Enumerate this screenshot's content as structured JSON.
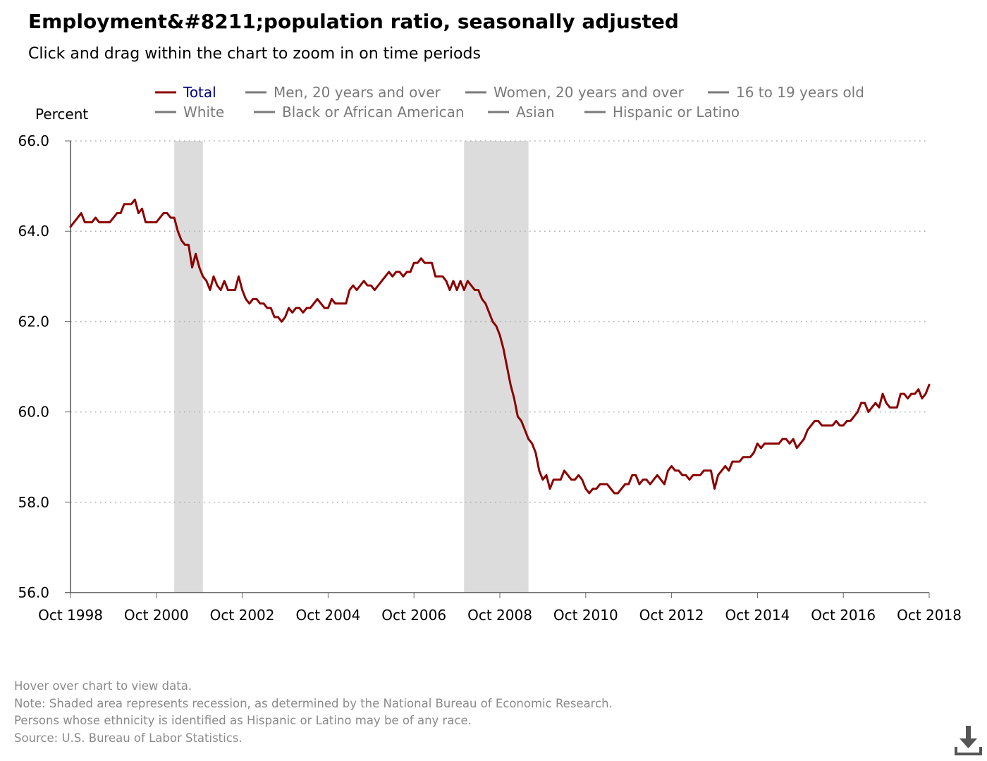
{
  "title": "Employment&#8211;population ratio, seasonally adjusted",
  "subtitle": "Click and drag within the chart to zoom in on time periods",
  "footer": {
    "lines": [
      "Hover over chart to view data.",
      "Note: Shaded area represents recession, as determined by the National Bureau of Economic Research.",
      "Persons whose ethnicity is identified as Hispanic or Latino may be of any race.",
      "Source: U.S. Bureau of Labor Statistics."
    ]
  },
  "download": {
    "icon": "download-icon"
  },
  "colors": {
    "total": "#8b0000",
    "inactive": "#7a7a7a",
    "active_label": "#00007a",
    "recession": "#dcdcdc",
    "grid": "#b0b0b0"
  },
  "chart_data": {
    "type": "line",
    "ylabel": "Percent",
    "ylim": [
      56.0,
      66.0
    ],
    "yticks": [
      "56.0",
      "58.0",
      "60.0",
      "62.0",
      "64.0",
      "66.0"
    ],
    "xlim": [
      "1998-10",
      "2018-10"
    ],
    "xticks": [
      "Oct 1998",
      "Oct 2000",
      "Oct 2002",
      "Oct 2004",
      "Oct 2006",
      "Oct 2008",
      "Oct 2010",
      "Oct 2012",
      "Oct 2014",
      "Oct 2016",
      "Oct 2018"
    ],
    "grid": true,
    "legend_position": "top",
    "legend": [
      {
        "name": "Total",
        "active": true
      },
      {
        "name": "Men, 20 years and over",
        "active": false
      },
      {
        "name": "Women, 20 years and over",
        "active": false
      },
      {
        "name": "16 to 19 years old",
        "active": false
      },
      {
        "name": "White",
        "active": false
      },
      {
        "name": "Black or African American",
        "active": false
      },
      {
        "name": "Asian",
        "active": false
      },
      {
        "name": "Hispanic or Latino",
        "active": false
      }
    ],
    "recessions": [
      {
        "start": "2001-03",
        "end": "2001-11"
      },
      {
        "start": "2007-12",
        "end": "2009-06"
      }
    ],
    "series": [
      {
        "name": "Total",
        "start": "1998-10",
        "frequency": "monthly",
        "values": [
          64.1,
          64.2,
          64.3,
          64.4,
          64.2,
          64.2,
          64.2,
          64.3,
          64.2,
          64.2,
          64.2,
          64.2,
          64.3,
          64.4,
          64.4,
          64.6,
          64.6,
          64.6,
          64.7,
          64.4,
          64.5,
          64.2,
          64.2,
          64.2,
          64.2,
          64.3,
          64.4,
          64.4,
          64.3,
          64.3,
          64.0,
          63.8,
          63.7,
          63.7,
          63.2,
          63.5,
          63.2,
          63.0,
          62.9,
          62.7,
          63.0,
          62.8,
          62.7,
          62.9,
          62.7,
          62.7,
          62.7,
          63.0,
          62.7,
          62.5,
          62.4,
          62.5,
          62.5,
          62.4,
          62.4,
          62.3,
          62.3,
          62.1,
          62.1,
          62.0,
          62.1,
          62.3,
          62.2,
          62.3,
          62.3,
          62.2,
          62.3,
          62.3,
          62.4,
          62.5,
          62.4,
          62.3,
          62.3,
          62.5,
          62.4,
          62.4,
          62.4,
          62.4,
          62.7,
          62.8,
          62.7,
          62.8,
          62.9,
          62.8,
          62.8,
          62.7,
          62.8,
          62.9,
          63.0,
          63.1,
          63.0,
          63.1,
          63.1,
          63.0,
          63.1,
          63.1,
          63.3,
          63.3,
          63.4,
          63.3,
          63.3,
          63.3,
          63.0,
          63.0,
          63.0,
          62.9,
          62.7,
          62.9,
          62.7,
          62.9,
          62.7,
          62.9,
          62.8,
          62.7,
          62.7,
          62.5,
          62.4,
          62.2,
          62.0,
          61.9,
          61.7,
          61.4,
          61.0,
          60.6,
          60.3,
          59.9,
          59.8,
          59.6,
          59.4,
          59.3,
          59.1,
          58.7,
          58.5,
          58.6,
          58.3,
          58.5,
          58.5,
          58.5,
          58.7,
          58.6,
          58.5,
          58.5,
          58.6,
          58.5,
          58.3,
          58.2,
          58.3,
          58.3,
          58.4,
          58.4,
          58.4,
          58.3,
          58.2,
          58.2,
          58.3,
          58.4,
          58.4,
          58.6,
          58.6,
          58.4,
          58.5,
          58.5,
          58.4,
          58.5,
          58.6,
          58.5,
          58.4,
          58.7,
          58.8,
          58.7,
          58.7,
          58.6,
          58.6,
          58.5,
          58.6,
          58.6,
          58.6,
          58.7,
          58.7,
          58.7,
          58.3,
          58.6,
          58.7,
          58.8,
          58.7,
          58.9,
          58.9,
          58.9,
          59.0,
          59.0,
          59.0,
          59.1,
          59.3,
          59.2,
          59.3,
          59.3,
          59.3,
          59.3,
          59.3,
          59.4,
          59.4,
          59.3,
          59.4,
          59.2,
          59.3,
          59.4,
          59.6,
          59.7,
          59.8,
          59.8,
          59.7,
          59.7,
          59.7,
          59.7,
          59.8,
          59.7,
          59.7,
          59.8,
          59.8,
          59.9,
          60.0,
          60.2,
          60.2,
          60.0,
          60.1,
          60.2,
          60.1,
          60.4,
          60.2,
          60.1,
          60.1,
          60.1,
          60.4,
          60.4,
          60.3,
          60.4,
          60.4,
          60.5,
          60.3,
          60.4,
          60.6
        ]
      }
    ]
  }
}
